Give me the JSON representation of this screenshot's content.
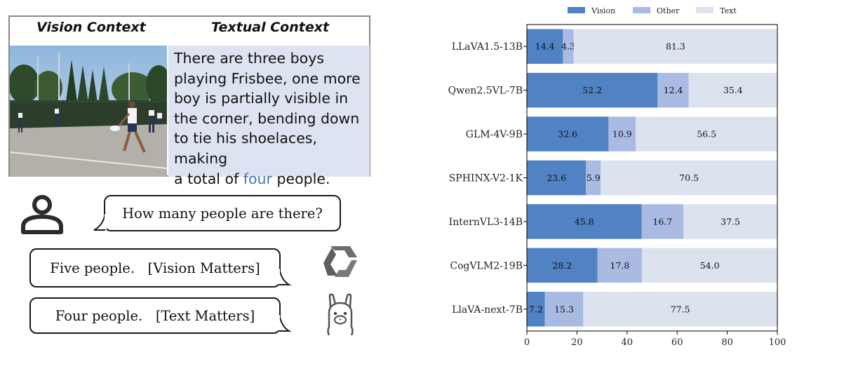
{
  "context_panel": {
    "vision_heading": "Vision Context",
    "text_heading": "Textual Context",
    "text_lines": [
      "There are three boys",
      "playing Frisbee, one more",
      "boy is partially visible in",
      "the corner, bending down",
      "to tie his shoelaces, making"
    ],
    "last_line_before": "a total of ",
    "last_line_highlight": "four",
    "last_line_after": " people.",
    "highlight_color": "#3d79b9"
  },
  "chat": {
    "question": "How many people are there?",
    "answer_vision": "Five people.   [Vision Matters]",
    "answer_text": "Four people.   [Text Matters]"
  },
  "chart_data": {
    "type": "bar",
    "orientation": "horizontal",
    "stacked": true,
    "categories": [
      "LLaVA1.5-13B",
      "Qwen2.5VL-7B",
      "GLM-4V-9B",
      "SPHINX-V2-1K",
      "InternVL3-14B",
      "CogVLM2-19B",
      "LlaVA-next-7B"
    ],
    "series": [
      {
        "name": "Vision",
        "color": "#5082c4",
        "values": [
          14.4,
          52.2,
          32.6,
          23.6,
          45.8,
          28.2,
          7.2
        ]
      },
      {
        "name": "Other",
        "color": "#a9bbe3",
        "values": [
          4.3,
          12.4,
          10.9,
          5.9,
          16.7,
          17.8,
          15.3
        ]
      },
      {
        "name": "Text",
        "color": "#dde3ee",
        "values": [
          81.3,
          35.4,
          56.5,
          70.5,
          37.5,
          54.0,
          77.5
        ]
      }
    ],
    "xlim": [
      0,
      100
    ],
    "xticks": [
      0,
      20,
      40,
      60,
      80,
      100
    ],
    "legend": "top",
    "title": "",
    "xlabel": "",
    "ylabel": ""
  }
}
